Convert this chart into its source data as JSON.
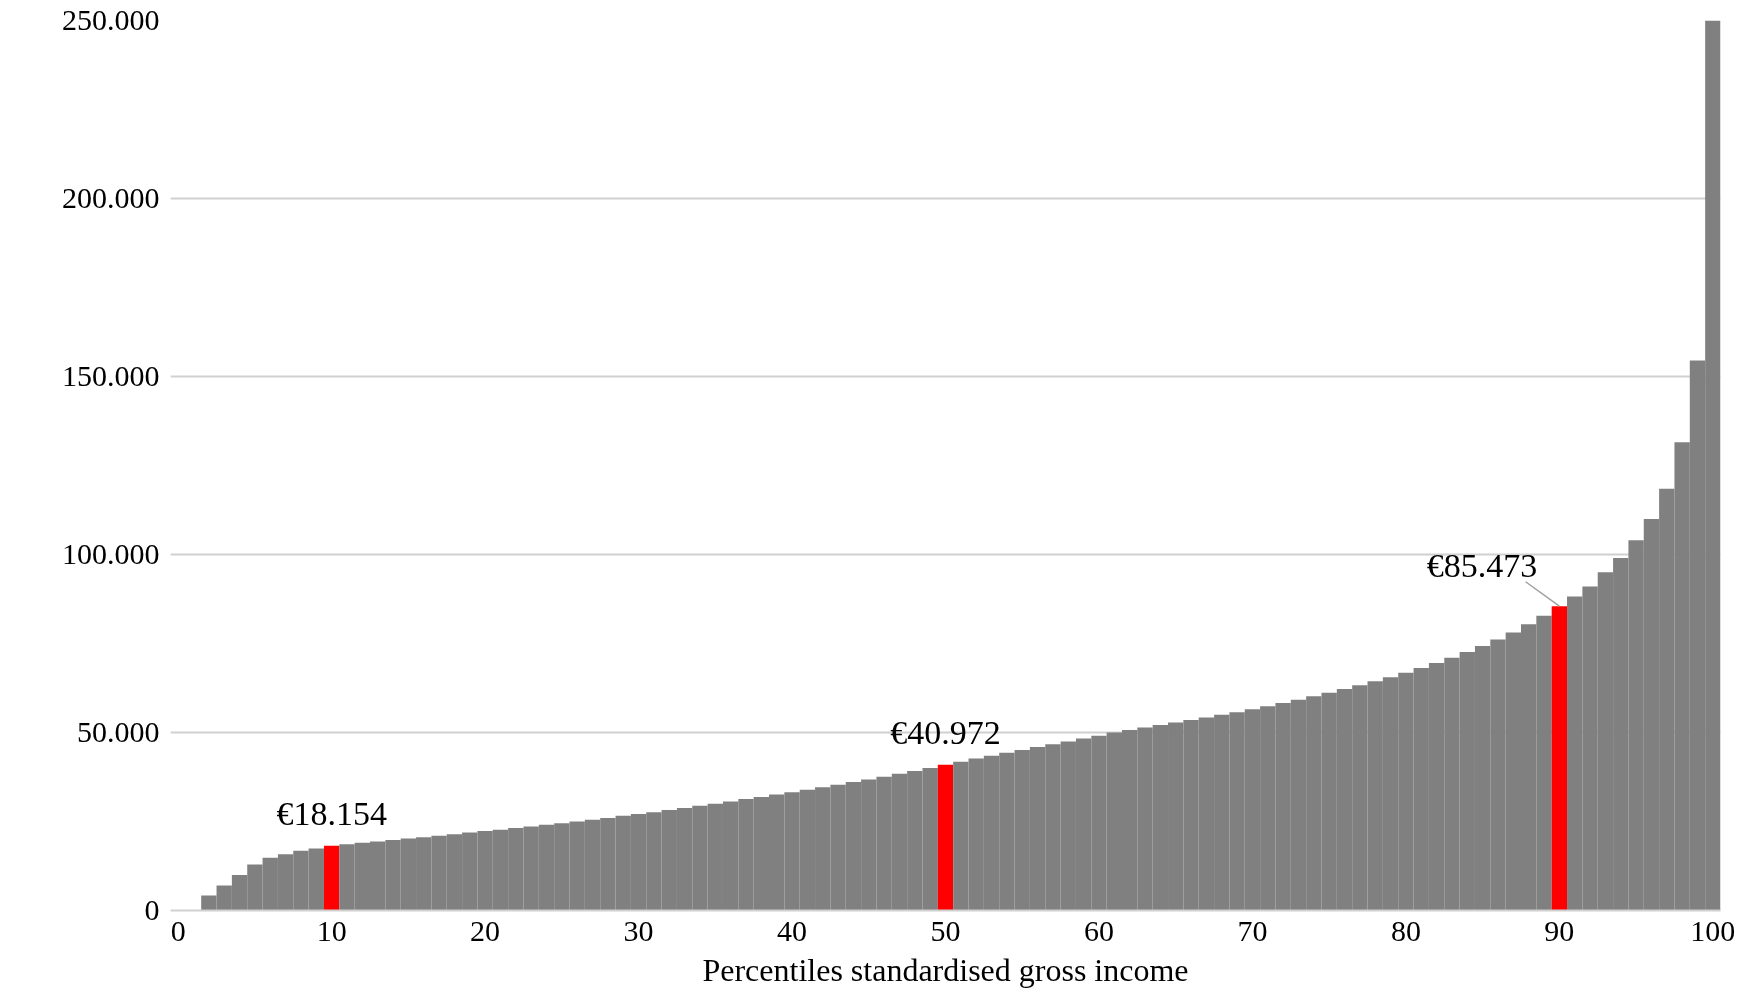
{
  "chart_data": {
    "type": "bar",
    "xlabel": "Percentiles standardised gross income",
    "x": [
      1,
      2,
      3,
      4,
      5,
      6,
      7,
      8,
      9,
      10,
      11,
      12,
      13,
      14,
      15,
      16,
      17,
      18,
      19,
      20,
      21,
      22,
      23,
      24,
      25,
      26,
      27,
      28,
      29,
      30,
      31,
      32,
      33,
      34,
      35,
      36,
      37,
      38,
      39,
      40,
      41,
      42,
      43,
      44,
      45,
      46,
      47,
      48,
      49,
      50,
      51,
      52,
      53,
      54,
      55,
      56,
      57,
      58,
      59,
      60,
      61,
      62,
      63,
      64,
      65,
      66,
      67,
      68,
      69,
      70,
      71,
      72,
      73,
      74,
      75,
      76,
      77,
      78,
      79,
      80,
      81,
      82,
      83,
      84,
      85,
      86,
      87,
      88,
      89,
      90,
      91,
      92,
      93,
      94,
      95,
      96,
      97,
      98,
      99,
      100
    ],
    "values": [
      0,
      4200,
      7000,
      10000,
      12900,
      14800,
      15800,
      16800,
      17400,
      18154,
      18600,
      19000,
      19400,
      19800,
      20200,
      20600,
      21000,
      21400,
      21900,
      22300,
      22700,
      23200,
      23600,
      24100,
      24500,
      25000,
      25500,
      26000,
      26600,
      27100,
      27600,
      28200,
      28800,
      29400,
      30000,
      30600,
      31300,
      31900,
      32600,
      33200,
      33900,
      34600,
      35300,
      36100,
      36800,
      37600,
      38400,
      39200,
      40000,
      40972,
      41800,
      42700,
      43500,
      44300,
      45100,
      45900,
      46700,
      47500,
      48300,
      49100,
      50000,
      50700,
      51400,
      52100,
      52800,
      53500,
      54200,
      55000,
      55700,
      56500,
      57400,
      58300,
      59200,
      60200,
      61200,
      62200,
      63300,
      64400,
      65500,
      66800,
      68100,
      69500,
      71000,
      72600,
      74300,
      76100,
      78100,
      80400,
      82800,
      85473,
      88200,
      91000,
      95000,
      99000,
      104000,
      110000,
      118500,
      131500,
      154500,
      250000
    ],
    "colors": [
      "#808080",
      "#808080",
      "#808080",
      "#808080",
      "#808080",
      "#808080",
      "#808080",
      "#808080",
      "#808080",
      "#ff0000",
      "#808080",
      "#808080",
      "#808080",
      "#808080",
      "#808080",
      "#808080",
      "#808080",
      "#808080",
      "#808080",
      "#808080",
      "#808080",
      "#808080",
      "#808080",
      "#808080",
      "#808080",
      "#808080",
      "#808080",
      "#808080",
      "#808080",
      "#808080",
      "#808080",
      "#808080",
      "#808080",
      "#808080",
      "#808080",
      "#808080",
      "#808080",
      "#808080",
      "#808080",
      "#808080",
      "#808080",
      "#808080",
      "#808080",
      "#808080",
      "#808080",
      "#808080",
      "#808080",
      "#808080",
      "#808080",
      "#ff0000",
      "#808080",
      "#808080",
      "#808080",
      "#808080",
      "#808080",
      "#808080",
      "#808080",
      "#808080",
      "#808080",
      "#808080",
      "#808080",
      "#808080",
      "#808080",
      "#808080",
      "#808080",
      "#808080",
      "#808080",
      "#808080",
      "#808080",
      "#808080",
      "#808080",
      "#808080",
      "#808080",
      "#808080",
      "#808080",
      "#808080",
      "#808080",
      "#808080",
      "#808080",
      "#808080",
      "#808080",
      "#808080",
      "#808080",
      "#808080",
      "#808080",
      "#808080",
      "#808080",
      "#808080",
      "#808080",
      "#ff0000",
      "#808080",
      "#808080",
      "#808080",
      "#808080",
      "#808080",
      "#808080",
      "#808080",
      "#808080",
      "#808080",
      "#808080"
    ],
    "value_labels": [
      null,
      null,
      null,
      null,
      null,
      null,
      null,
      null,
      null,
      "€18.154",
      null,
      null,
      null,
      null,
      null,
      null,
      null,
      null,
      null,
      null,
      null,
      null,
      null,
      null,
      null,
      null,
      null,
      null,
      null,
      null,
      null,
      null,
      null,
      null,
      null,
      null,
      null,
      null,
      null,
      null,
      null,
      null,
      null,
      null,
      null,
      null,
      null,
      null,
      null,
      "€40.972",
      null,
      null,
      null,
      null,
      null,
      null,
      null,
      null,
      null,
      null,
      null,
      null,
      null,
      null,
      null,
      null,
      null,
      null,
      null,
      null,
      null,
      null,
      null,
      null,
      null,
      null,
      null,
      null,
      null,
      null,
      null,
      null,
      null,
      null,
      null,
      null,
      null,
      null,
      null,
      "€85.473",
      null,
      null,
      null,
      null,
      null,
      null,
      null,
      null,
      null,
      null
    ],
    "xlim": [
      -0.5,
      100.5
    ],
    "xticks": [
      0,
      10,
      20,
      30,
      40,
      50,
      60,
      70,
      80,
      90,
      100
    ],
    "ylim": [
      0,
      250000
    ],
    "yticks": [
      {
        "value": 0,
        "label": "0"
      },
      {
        "value": 50000,
        "label": "50.000"
      },
      {
        "value": 100000,
        "label": "100.000"
      },
      {
        "value": 150000,
        "label": "150.000"
      },
      {
        "value": 200000,
        "label": "200.000"
      },
      {
        "value": 250000,
        "label": "250.000"
      }
    ],
    "grid": "y"
  }
}
